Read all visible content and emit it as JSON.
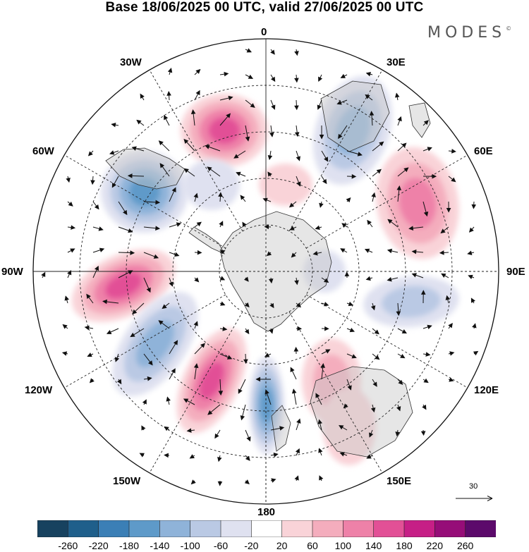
{
  "title": "Base 18/06/2025 00 UTC, valid 27/06/2025 00 UTC",
  "brand": "MODES",
  "brand_mark": "©",
  "longitude_labels": {
    "lon_0": "0",
    "lon_30e": "30E",
    "lon_60e": "60E",
    "lon_90e": "90E",
    "lon_120e": "120E",
    "lon_150e": "150E",
    "lon_180": "180",
    "lon_150w": "150W",
    "lon_120w": "120W",
    "lon_90w": "90W",
    "lon_60w": "60W",
    "lon_30w": "30W"
  },
  "reference_vector": {
    "label": "30"
  },
  "colorbar": {
    "ticks": [
      "-260",
      "-220",
      "-180",
      "-140",
      "-100",
      "-60",
      "-20",
      "20",
      "60",
      "100",
      "140",
      "180",
      "220",
      "260"
    ],
    "colors": [
      "#17425f",
      "#1f5f8b",
      "#3b7fb6",
      "#5e9ac9",
      "#8fb3d9",
      "#bac9e4",
      "#dfe1f0",
      "#ffffff",
      "#f9d3d8",
      "#f4adbd",
      "#ee81a8",
      "#e25096",
      "#c61f86",
      "#960d78",
      "#5c0a6b"
    ]
  },
  "anomalies": [
    {
      "sign": "pos",
      "level": 4
    },
    {
      "sign": "neg",
      "level": 4
    },
    {
      "sign": "pos",
      "level": 3
    },
    {
      "sign": "neg",
      "level": 3
    },
    {
      "sign": "pos",
      "level": 4
    },
    {
      "sign": "neg",
      "level": 3
    },
    {
      "sign": "pos",
      "level": 4
    },
    {
      "sign": "neg",
      "level": 4
    },
    {
      "sign": "pos",
      "level": 2
    },
    {
      "sign": "neg",
      "level": 2
    },
    {
      "sign": "pos",
      "level": 1
    },
    {
      "sign": "neg",
      "level": 1
    },
    {
      "sign": "pos",
      "level": 1
    },
    {
      "sign": "neg",
      "level": 1
    }
  ]
}
